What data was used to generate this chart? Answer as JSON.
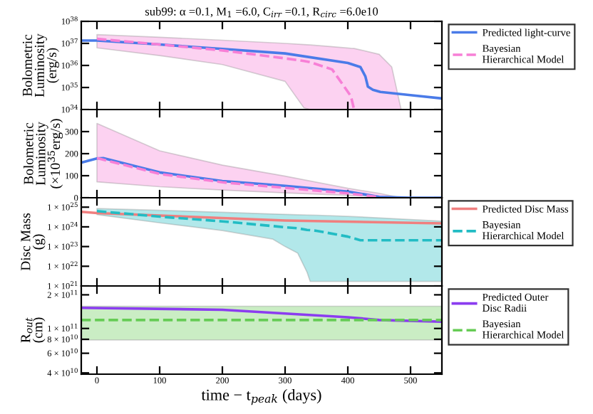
{
  "chart_data": [
    {
      "type": "line",
      "title": "sub99: α =0.1, M$_{1}$ =6.0, C$_{irr}$ =0.1, R$_{circ}$ =6.0e10",
      "ylabel": "Bolometric\nLuminosity\n(erg/s)",
      "log": "y",
      "xlim": [
        -25,
        550
      ],
      "xticks": [
        0,
        100,
        200,
        300,
        400,
        500
      ],
      "ylim": [
        1e+34,
        1e+38
      ],
      "yticks": [
        {
          "value": 1e+34,
          "label": "10$^{34}$"
        },
        {
          "value": 1e+35,
          "label": "10$^{35}$"
        },
        {
          "value": 1e+36,
          "label": "10$^{36}$"
        },
        {
          "value": 1e+37,
          "label": "10$^{37}$"
        },
        {
          "value": 1e+38,
          "label": "10$^{38}$"
        }
      ],
      "tick_labels": "y",
      "legend": "right",
      "grid": false,
      "series": [
        {
          "name": "Predicted light-curve",
          "color": "#4a7be8",
          "line_style": "solid",
          "x": [
            -25,
            0,
            100,
            200,
            300,
            400,
            420,
            428,
            432,
            440,
            452,
            500,
            550
          ],
          "values": [
            1.35e+37,
            1.35e+37,
            8.9e+36,
            5.6e+36,
            3.5e+36,
            1.3e+36,
            8.5e+35,
            3.2e+35,
            1.1e+35,
            7.9e+34,
            6.3e+34,
            4.5e+34,
            3.2e+34
          ]
        },
        {
          "name": "Bayesian\nHierarchical Model",
          "color": "#f77fd6",
          "line_style": "dashed",
          "x": [
            0,
            100,
            200,
            300,
            330,
            340,
            375,
            405,
            410,
            450,
            470,
            485
          ],
          "values": [
            1.6e+37,
            8.9e+36,
            4.8e+36,
            2.1e+36,
            1.6e+36,
            1.4e+36,
            6.6e+35,
            4e+34,
            1e+34,
            null,
            null,
            null
          ],
          "upper": [
            2.5e+37,
            1.9e+37,
            1.4e+37,
            1e+37,
            8.9e+36,
            8.5e+36,
            7.1e+36,
            6e+36,
            5.9e+36,
            3.2e+36,
            8.5e+35,
            1e+34
          ],
          "lower": [
            6.3e+36,
            2.8e+36,
            1.1e+36,
            1.9e+35,
            1.2e+34,
            1e+34,
            1e+34,
            1e+34,
            1e+34,
            1e+34,
            1e+34,
            1e+34
          ]
        }
      ]
    },
    {
      "type": "line",
      "ylabel": "Bolometric\nLuminosity\n(×10$^{35}$erg/s)",
      "xlim": [
        -25,
        550
      ],
      "xticks": [
        0,
        100,
        200,
        300,
        400,
        500
      ],
      "ylim": [
        0,
        400
      ],
      "yticks": [
        0,
        100,
        200,
        300
      ],
      "tick_labels": "y",
      "legend": false,
      "grid": false,
      "series": [
        {
          "color": "#4a7be8",
          "line_style": "solid",
          "x": [
            -25,
            0,
            10,
            100,
            200,
            300,
            400,
            450,
            500,
            550
          ],
          "values": [
            159,
            178,
            180,
            115,
            76,
            54,
            28,
            4,
            0,
            0
          ]
        },
        {
          "color": "#f77fd6",
          "line_style": "dashed",
          "x": [
            0,
            100,
            200,
            300,
            400,
            450,
            485
          ],
          "values": [
            180,
            108,
            70,
            45,
            20,
            3,
            null
          ],
          "upper": [
            337,
            213,
            148,
            98,
            43,
            20,
            0
          ],
          "lower": [
            72,
            50,
            35,
            22,
            11,
            5,
            0
          ]
        }
      ]
    },
    {
      "type": "line",
      "ylabel": "Disc Mass\n(g)",
      "log": "y",
      "xlim": [
        -25,
        550
      ],
      "xticks": [
        0,
        100,
        200,
        300,
        400,
        500
      ],
      "ylim": [
        1e+21,
        3e+25
      ],
      "yticks": [
        {
          "value": 1e+21,
          "label": "1 × 10$^{21}$"
        },
        {
          "value": 1e+22,
          "label": "1 × 10$^{22}$"
        },
        {
          "value": 1e+23,
          "label": "1 × 10$^{23}$"
        },
        {
          "value": 1e+24,
          "label": "1 × 10$^{24}$"
        },
        {
          "value": 1e+25,
          "label": "1 × 10$^{25}$"
        }
      ],
      "tick_labels": "y",
      "legend": "right",
      "grid": false,
      "series": [
        {
          "name": "Predicted Disc Mass",
          "color": "#f07f7f",
          "line_style": "solid",
          "x": [
            -25,
            0,
            300,
            550
          ],
          "values": [
            5.8e+24,
            5e+24,
            2.1e+24,
            1.5e+24
          ]
        },
        {
          "name": "Bayesian\nHierarchical Model",
          "color": "#22bcc4",
          "line_style": "dashed",
          "x": [
            0,
            100,
            200,
            280,
            300,
            320,
            335,
            340,
            350,
            400,
            420,
            550
          ],
          "values": [
            6.3e+24,
            3.3e+24,
            1.9e+24,
            1.1e+24,
            9.5e+23,
            8.5e+23,
            7e+23,
            6.8e+23,
            6.3e+23,
            3.2e+23,
            2.1e+23,
            2.1e+23
          ],
          "upper": [
            8.5e+24,
            6.9e+24,
            5.5e+24,
            4.5e+24,
            4.3e+24,
            4.1e+24,
            4e+24,
            3.95e+24,
            3.9e+24,
            3.4e+24,
            3.2e+24,
            1.95e+24
          ],
          "lower": [
            4.2e+24,
            1.6e+24,
            6.5e+23,
            2.4e+23,
            1e+23,
            4.7e+22,
            5e+21,
            1.7e+21,
            1.7e+21,
            1.7e+21,
            1.7e+21,
            1.7e+21
          ]
        }
      ]
    },
    {
      "type": "line",
      "ylabel": "R$_{out}$\n(cm)",
      "xlabel": "time − t$_{peak}$ (days)",
      "log": "y",
      "xlim": [
        -25,
        550
      ],
      "xticks": [
        0,
        100,
        200,
        300,
        400,
        500
      ],
      "ylim": [
        39000000000.0,
        240000000000.0
      ],
      "yticks": [
        {
          "value": 40000000000.0,
          "label": "4 × 10$^{10}$"
        },
        {
          "value": 60000000000.0,
          "label": "6 × 10$^{10}$"
        },
        {
          "value": 80000000000.0,
          "label": "8 × 10$^{10}$"
        },
        {
          "value": 100000000000.0,
          "label": "1 × 10$^{11}$"
        },
        {
          "value": 200000000000.0,
          "label": "2 × 10$^{11}$"
        }
      ],
      "legend": "right",
      "grid": false,
      "series": [
        {
          "name": "Predicted Outer\nDisc Radii",
          "color": "#8b3cf0",
          "line_style": "solid",
          "x": [
            -25,
            200,
            300,
            400,
            450,
            550
          ],
          "values": [
            153000000000.0,
            147000000000.0,
            136000000000.0,
            126000000000.0,
            119000000000.0,
            115000000000.0
          ]
        },
        {
          "name": "Bayesian\nHierarchical Model",
          "color": "#66cc55",
          "line_style": "dashed",
          "x": [
            -25,
            550
          ],
          "values": [
            119000000000.0,
            119000000000.0
          ],
          "upper": [
            158000000000.0,
            158000000000.0
          ],
          "lower": [
            79000000000.0,
            79000000000.0
          ]
        }
      ]
    }
  ]
}
